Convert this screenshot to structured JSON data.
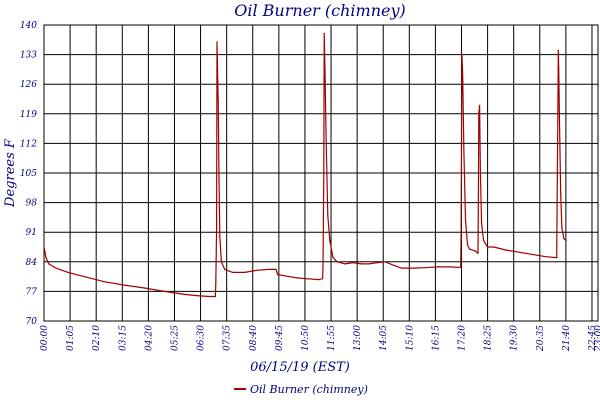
{
  "chart_data": {
    "type": "line",
    "title": "Oil Burner (chimney)",
    "xlabel": "06/15/19 (EST)",
    "ylabel": "Degrees F",
    "ylim": [
      70,
      140
    ],
    "yticks": [
      70,
      77,
      84,
      91,
      98,
      105,
      112,
      119,
      126,
      133,
      140
    ],
    "xlim": [
      0,
      1380
    ],
    "xticks": [
      {
        "min": 0,
        "label": "00:00"
      },
      {
        "min": 65,
        "label": "01:05"
      },
      {
        "min": 130,
        "label": "02:10"
      },
      {
        "min": 195,
        "label": "03:15"
      },
      {
        "min": 260,
        "label": "04:20"
      },
      {
        "min": 325,
        "label": "05:25"
      },
      {
        "min": 390,
        "label": "06:30"
      },
      {
        "min": 455,
        "label": "07:35"
      },
      {
        "min": 520,
        "label": "08:40"
      },
      {
        "min": 585,
        "label": "09:45"
      },
      {
        "min": 650,
        "label": "10:50"
      },
      {
        "min": 715,
        "label": "11:55"
      },
      {
        "min": 780,
        "label": "13:00"
      },
      {
        "min": 845,
        "label": "14:05"
      },
      {
        "min": 910,
        "label": "15:10"
      },
      {
        "min": 975,
        "label": "16:15"
      },
      {
        "min": 1040,
        "label": "17:20"
      },
      {
        "min": 1105,
        "label": "18:25"
      },
      {
        "min": 1170,
        "label": "19:30"
      },
      {
        "min": 1235,
        "label": "20:35"
      },
      {
        "min": 1300,
        "label": "21:40"
      },
      {
        "min": 1365,
        "label": "22:45"
      },
      {
        "min": 1380,
        "label": "23:00"
      }
    ],
    "grid": true,
    "legend_position": "bottom",
    "series": [
      {
        "name": "Oil Burner (chimney)",
        "color": "#a00000",
        "points": [
          [
            0,
            87.5
          ],
          [
            5,
            85
          ],
          [
            12,
            83.5
          ],
          [
            30,
            82.5
          ],
          [
            60,
            81.5
          ],
          [
            100,
            80.5
          ],
          [
            150,
            79.3
          ],
          [
            200,
            78.5
          ],
          [
            250,
            77.8
          ],
          [
            300,
            77
          ],
          [
            350,
            76.3
          ],
          [
            380,
            76
          ],
          [
            412,
            75.8
          ],
          [
            427,
            75.8
          ],
          [
            428,
            79
          ],
          [
            430,
            92
          ],
          [
            431,
            136
          ],
          [
            432,
            131
          ],
          [
            434,
            122
          ],
          [
            436,
            104
          ],
          [
            438,
            90
          ],
          [
            442,
            84
          ],
          [
            450,
            82.2
          ],
          [
            470,
            81.5
          ],
          [
            500,
            81.5
          ],
          [
            530,
            82
          ],
          [
            560,
            82.2
          ],
          [
            578,
            82.2
          ],
          [
            582,
            81
          ],
          [
            600,
            80.7
          ],
          [
            630,
            80.2
          ],
          [
            654,
            80
          ],
          [
            684,
            79.8
          ],
          [
            694,
            80
          ],
          [
            695,
            83
          ],
          [
            697,
            105
          ],
          [
            698,
            138
          ],
          [
            700,
            129
          ],
          [
            703,
            112
          ],
          [
            707,
            95
          ],
          [
            712,
            89
          ],
          [
            720,
            85
          ],
          [
            730,
            84
          ],
          [
            750,
            83.5
          ],
          [
            770,
            83.8
          ],
          [
            790,
            83.5
          ],
          [
            810,
            83.5
          ],
          [
            830,
            83.8
          ],
          [
            850,
            84
          ],
          [
            870,
            83.2
          ],
          [
            890,
            82.5
          ],
          [
            920,
            82.5
          ],
          [
            950,
            82.6
          ],
          [
            980,
            82.8
          ],
          [
            1010,
            82.8
          ],
          [
            1030,
            82.7
          ],
          [
            1038,
            82.7
          ],
          [
            1039,
            90
          ],
          [
            1040,
            112
          ],
          [
            1041,
            133
          ],
          [
            1043,
            128
          ],
          [
            1046,
            110
          ],
          [
            1050,
            94
          ],
          [
            1055,
            88
          ],
          [
            1060,
            87
          ],
          [
            1075,
            86.5
          ],
          [
            1081,
            86
          ],
          [
            1082,
            100
          ],
          [
            1083,
            119
          ],
          [
            1085,
            121
          ],
          [
            1087,
            105
          ],
          [
            1090,
            93
          ],
          [
            1095,
            89
          ],
          [
            1105,
            87.5
          ],
          [
            1120,
            87.5
          ],
          [
            1150,
            86.8
          ],
          [
            1200,
            86
          ],
          [
            1250,
            85.2
          ],
          [
            1277,
            85
          ],
          [
            1278,
            97
          ],
          [
            1280,
            120
          ],
          [
            1281,
            134
          ],
          [
            1282,
            130
          ],
          [
            1284,
            117
          ],
          [
            1287,
            100
          ],
          [
            1290,
            92
          ],
          [
            1295,
            89.5
          ],
          [
            1301,
            89
          ]
        ]
      }
    ]
  }
}
